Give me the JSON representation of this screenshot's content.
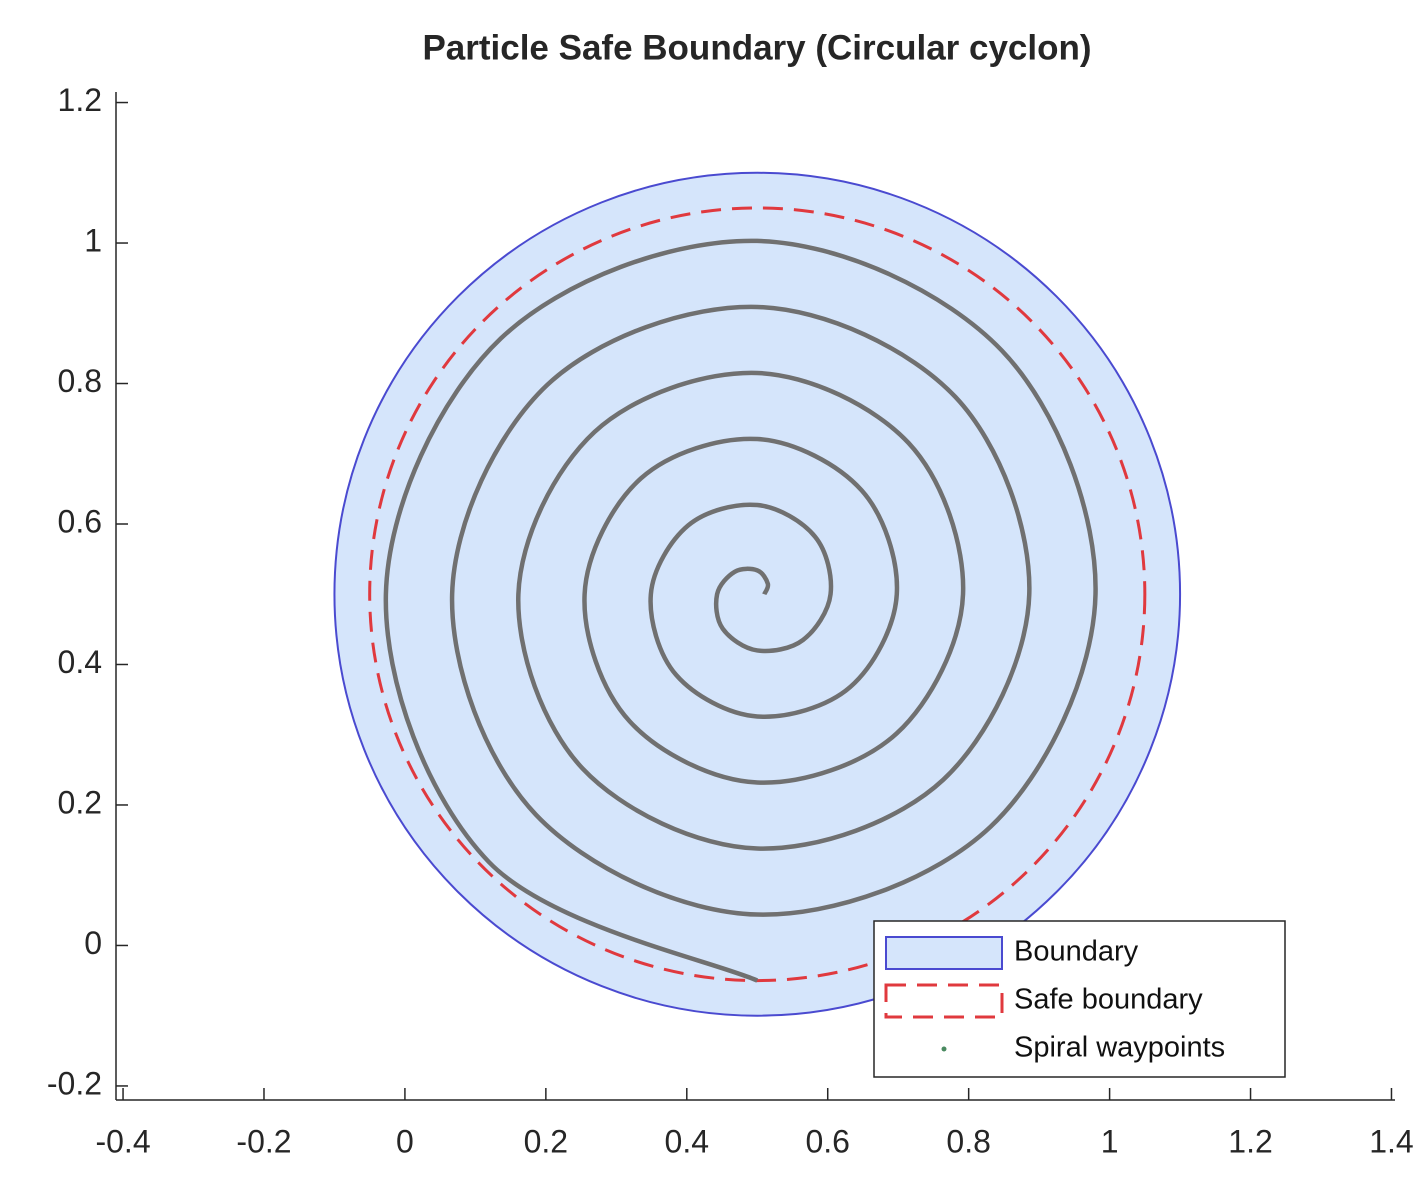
{
  "chart_data": {
    "type": "line",
    "title": "Particle Safe Boundary (Circular cyclon)",
    "xlim": [
      -0.41,
      1.405
    ],
    "ylim": [
      -0.22,
      1.215
    ],
    "xticks": [
      -0.4,
      -0.2,
      0,
      0.2,
      0.4,
      0.6,
      0.8,
      1,
      1.2,
      1.4
    ],
    "yticks": [
      -0.2,
      0,
      0.2,
      0.4,
      0.6,
      0.8,
      1,
      1.2
    ],
    "legend": "lower right",
    "series": [
      {
        "name": "Boundary",
        "color": "#4a4ad0",
        "fill": "#d5e5fb",
        "center": [
          0.5,
          0.5
        ],
        "radius": 0.6
      },
      {
        "name": "Safe boundary",
        "color": "#e0393e",
        "dashed": true,
        "center": [
          0.5,
          0.5
        ],
        "radius": 0.55
      },
      {
        "name": "Spiral waypoints",
        "color": "#707070",
        "x": [
          0.51,
          0.515,
          0.5,
          0.468,
          0.443,
          0.451,
          0.5,
          0.565,
          0.604,
          0.582,
          0.5,
          0.402,
          0.349,
          0.385,
          0.5,
          0.632,
          0.698,
          0.648,
          0.5,
          0.335,
          0.255,
          0.319,
          0.5,
          0.698,
          0.792,
          0.715,
          0.5,
          0.269,
          0.161,
          0.252,
          0.5,
          0.764,
          0.886,
          0.781,
          0.5,
          0.202,
          0.067,
          0.186,
          0.5,
          0.831,
          0.98,
          0.847,
          0.5,
          0.136,
          -0.027,
          0.119,
          0.5
        ],
        "y": [
          0.5,
          0.515,
          0.534,
          0.532,
          0.5,
          0.451,
          0.42,
          0.435,
          0.5,
          0.582,
          0.627,
          0.598,
          0.5,
          0.385,
          0.326,
          0.368,
          0.5,
          0.648,
          0.721,
          0.665,
          0.5,
          0.319,
          0.232,
          0.302,
          0.5,
          0.715,
          0.815,
          0.731,
          0.5,
          0.252,
          0.138,
          0.236,
          0.5,
          0.781,
          0.909,
          0.798,
          0.5,
          0.186,
          0.044,
          0.169,
          0.5,
          0.847,
          1.003,
          0.864,
          0.5,
          0.119,
          -0.05
        ]
      }
    ]
  }
}
